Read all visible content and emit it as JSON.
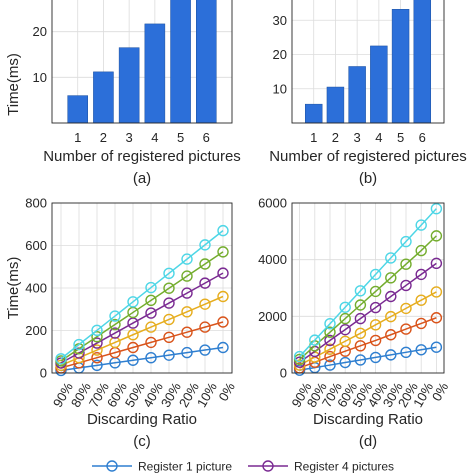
{
  "chart_data": [
    {
      "id": "a",
      "type": "bar",
      "caption": "(a)",
      "categories": [
        "1",
        "2",
        "3",
        "4",
        "5",
        "6"
      ],
      "values": [
        6,
        11.2,
        16.5,
        21.7,
        27,
        30.5
      ],
      "ylabel": "Time(ms)",
      "xlabel": "Number of registered pictures",
      "ylim": [
        0,
        30
      ],
      "yticks": [
        10,
        20,
        30
      ],
      "grid": true,
      "bar_color": "#2c6fd9"
    },
    {
      "id": "b",
      "type": "bar",
      "caption": "(b)",
      "categories": [
        "1",
        "2",
        "3",
        "4",
        "5",
        "6"
      ],
      "values": [
        5.5,
        10.5,
        16.5,
        22.5,
        33.2,
        43
      ],
      "ylabel": "",
      "xlabel": "Number of registered pictures",
      "ylim": [
        0,
        40
      ],
      "yticks": [
        10,
        20,
        30,
        40
      ],
      "grid": true,
      "bar_color": "#2c6fd9"
    },
    {
      "id": "c",
      "type": "line",
      "caption": "(c)",
      "categories": [
        "90%",
        "80%",
        "70%",
        "60%",
        "50%",
        "40%",
        "30%",
        "20%",
        "10%",
        "0%"
      ],
      "ylabel": "Time(ms)",
      "xlabel": "Discarding Ratio",
      "ylim": [
        0,
        800
      ],
      "yticks": [
        0,
        200,
        400,
        600,
        800
      ],
      "grid": true,
      "series": [
        {
          "color": "#2f7fd0",
          "values": [
            12,
            24,
            36,
            48,
            60,
            72,
            84,
            96,
            108,
            120
          ]
        },
        {
          "color": "#d9541b",
          "values": [
            24,
            48,
            72,
            96,
            120,
            144,
            168,
            192,
            216,
            240
          ]
        },
        {
          "color": "#e6ad1e",
          "values": [
            36,
            72,
            108,
            144,
            180,
            216,
            252,
            288,
            324,
            360
          ]
        },
        {
          "color": "#7a2a92",
          "values": [
            47,
            94,
            141,
            188,
            235,
            282,
            329,
            376,
            423,
            470
          ]
        },
        {
          "color": "#74ad2e",
          "values": [
            57,
            114,
            171,
            228,
            285,
            342,
            399,
            456,
            513,
            570
          ]
        },
        {
          "color": "#4ed6e6",
          "values": [
            67,
            134,
            201,
            268,
            335,
            402,
            469,
            536,
            603,
            670
          ]
        }
      ]
    },
    {
      "id": "d",
      "type": "line",
      "caption": "(d)",
      "categories": [
        "90%",
        "80%",
        "70%",
        "60%",
        "50%",
        "40%",
        "30%",
        "20%",
        "10%",
        "0%"
      ],
      "ylabel": "",
      "xlabel": "Discarding Ratio",
      "ylim": [
        0,
        6000
      ],
      "yticks": [
        0,
        2000,
        4000,
        6000
      ],
      "grid": true,
      "series": [
        {
          "color": "#2f7fd0",
          "values": [
            100,
            190,
            280,
            370,
            460,
            550,
            640,
            730,
            820,
            910
          ]
        },
        {
          "color": "#d9541b",
          "values": [
            180,
            380,
            580,
            770,
            960,
            1150,
            1350,
            1550,
            1750,
            1950
          ]
        },
        {
          "color": "#e6ad1e",
          "values": [
            280,
            560,
            840,
            1120,
            1400,
            1700,
            1990,
            2280,
            2570,
            2860
          ]
        },
        {
          "color": "#7a2a92",
          "values": [
            380,
            760,
            1150,
            1530,
            1920,
            2310,
            2700,
            3090,
            3480,
            3870
          ]
        },
        {
          "color": "#74ad2e",
          "values": [
            480,
            960,
            1440,
            1920,
            2400,
            2880,
            3360,
            3840,
            4320,
            4840
          ]
        },
        {
          "color": "#4ed6e6",
          "values": [
            580,
            1160,
            1740,
            2320,
            2900,
            3480,
            4060,
            4640,
            5220,
            5800
          ]
        }
      ]
    }
  ],
  "legend": [
    {
      "label": "Register 1 picture",
      "color": "#2f7fd0"
    },
    {
      "label": "Register 4 pictures",
      "color": "#7a2a92"
    }
  ]
}
